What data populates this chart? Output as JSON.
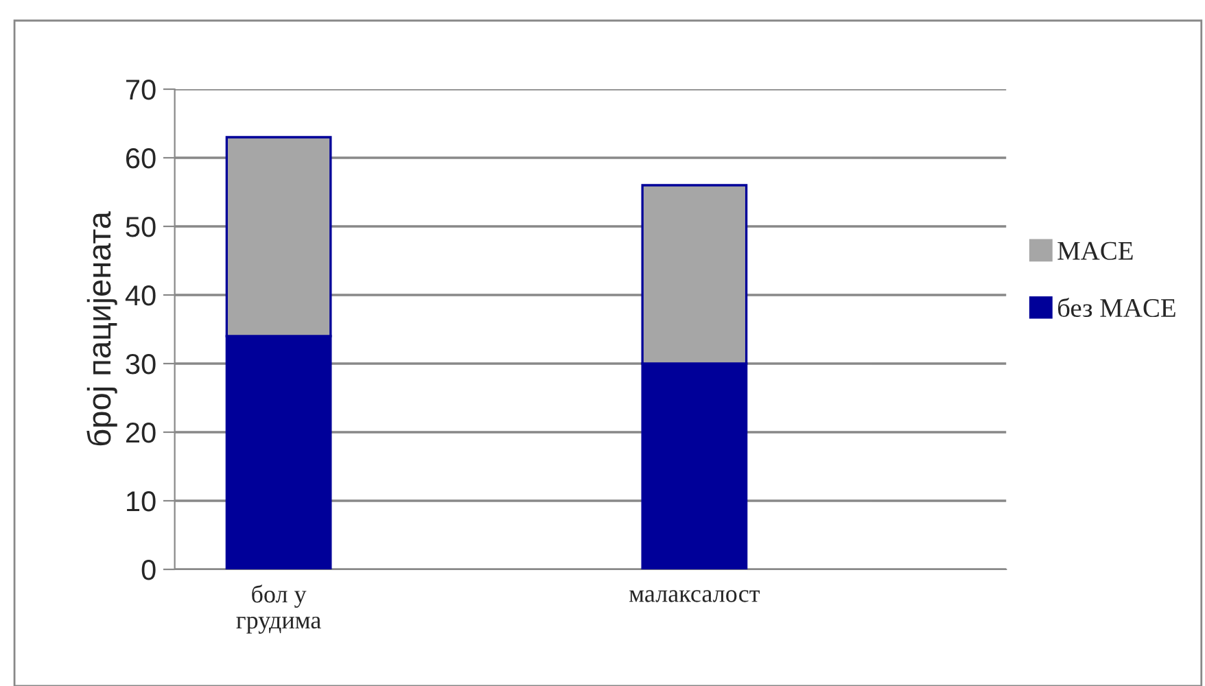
{
  "chart_data": {
    "type": "bar",
    "ylabel": "број пацијената",
    "categories": [
      "бол у\nгрудима",
      null,
      "малаксалост",
      null
    ],
    "stacked": true,
    "series": [
      {
        "name": "без MACE",
        "color": "#000099",
        "values": [
          34,
          null,
          30,
          null
        ]
      },
      {
        "name": "MACE",
        "color": "#a6a6a6",
        "values": [
          29,
          null,
          26,
          null
        ]
      }
    ],
    "ylim": [
      0,
      70
    ],
    "yticks": [
      0,
      10,
      20,
      30,
      40,
      50,
      60,
      70
    ],
    "grid": "y",
    "legend": "right"
  }
}
